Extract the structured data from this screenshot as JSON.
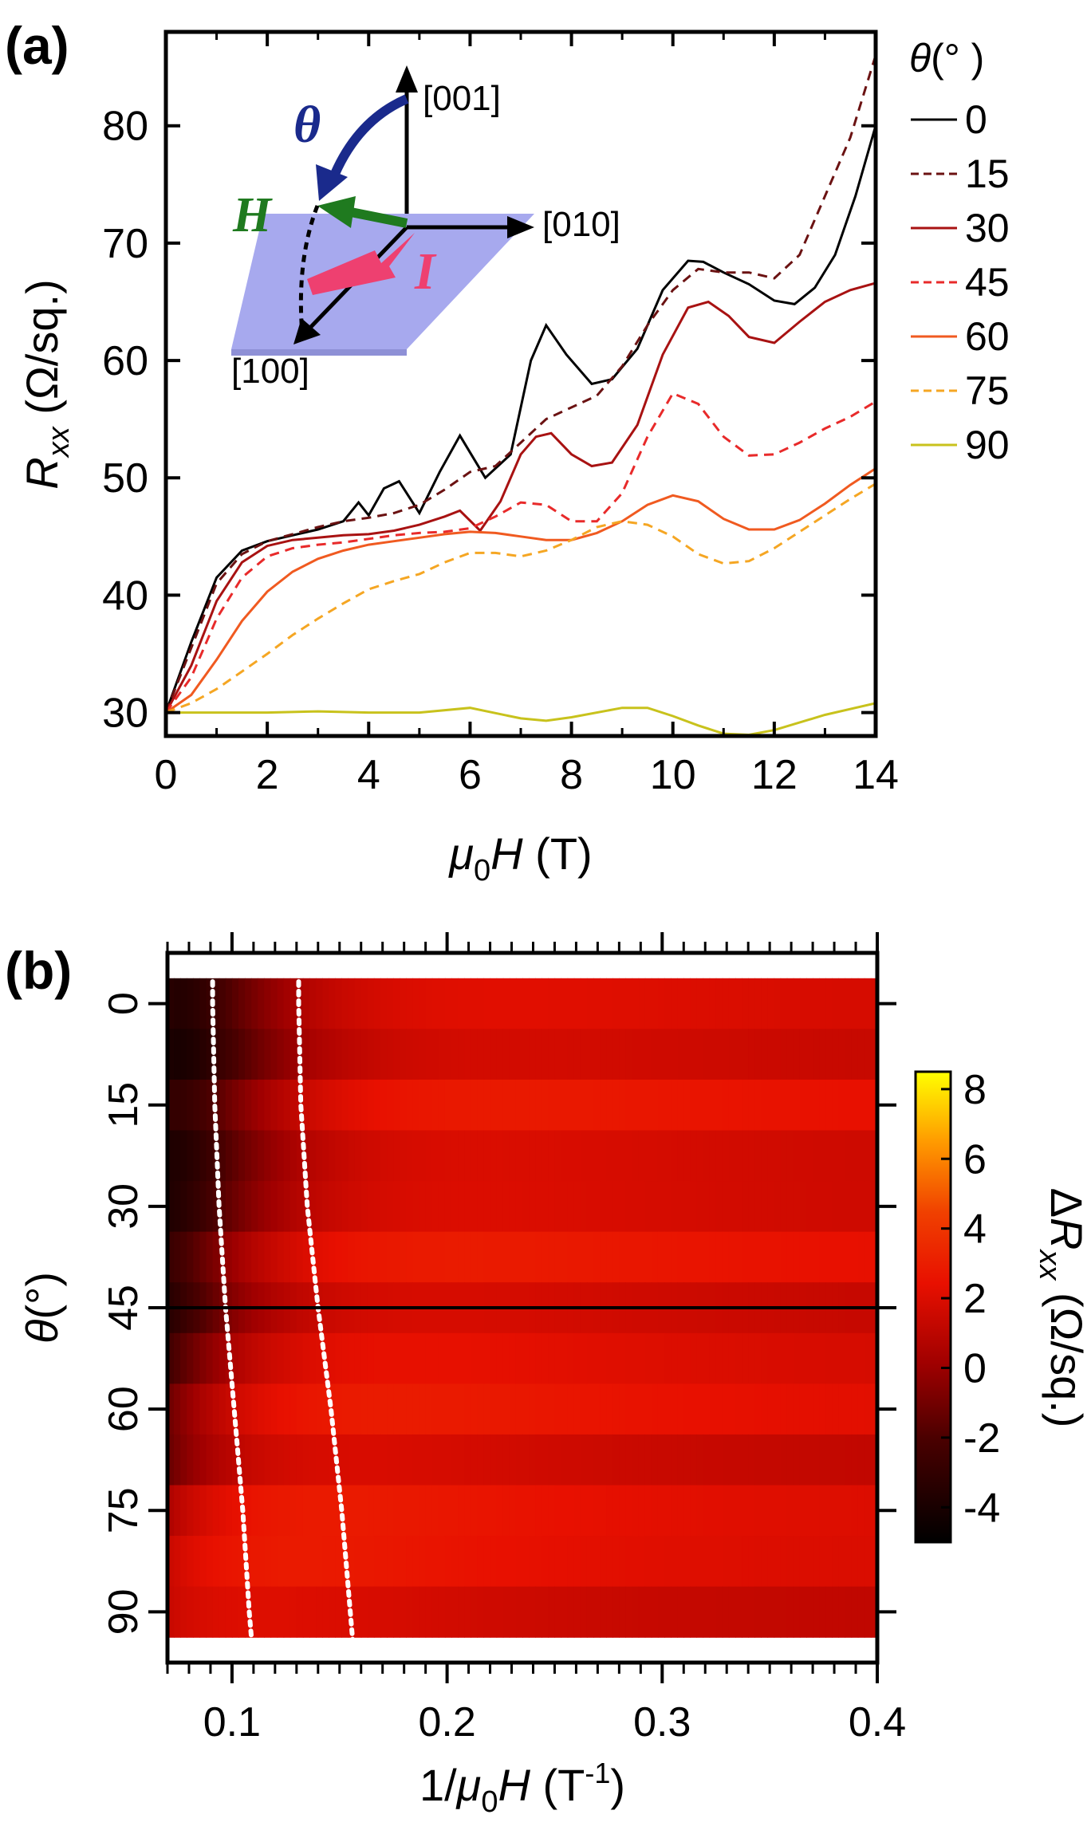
{
  "panels": [
    {
      "label": "(a)"
    },
    {
      "label": "(b)"
    }
  ],
  "chart_data": [
    {
      "type": "line",
      "panel": "(a)",
      "xlabel": "μ0H (T)",
      "xlabel_parts": {
        "mu": "μ",
        "sub": "0",
        "H": "H",
        "unit": " (T)"
      },
      "ylabel": "Rxx (Ω/sq.)",
      "ylabel_parts": {
        "R": "R",
        "sub": "xx",
        "unit": " (Ω/sq.)"
      },
      "xlim": [
        0,
        14
      ],
      "ylim": [
        28,
        88
      ],
      "xticks": [
        0,
        2,
        4,
        6,
        8,
        10,
        12,
        14
      ],
      "yticks": [
        30,
        40,
        50,
        60,
        70,
        80
      ],
      "legend_title": "θ(°)",
      "legend_title_parts": {
        "theta": "θ",
        "unit": "(° )"
      },
      "legend_position": "right",
      "series": [
        {
          "name": "0",
          "color": "#000000",
          "dash": "solid",
          "x": [
            0,
            0.5,
            1,
            1.5,
            2,
            2.5,
            3,
            3.5,
            3.8,
            4,
            4.3,
            4.6,
            5,
            5.4,
            5.8,
            6.3,
            6.8,
            7.2,
            7.5,
            7.9,
            8.4,
            8.8,
            9.3,
            9.8,
            10.3,
            10.6,
            11,
            11.5,
            12,
            12.4,
            12.8,
            13.2,
            13.6,
            14
          ],
          "y": [
            30,
            36,
            41.5,
            43.8,
            44.6,
            45.1,
            45.6,
            46.3,
            47.9,
            46.8,
            49.1,
            49.7,
            47,
            50.5,
            53.6,
            50,
            52,
            60,
            63,
            60.5,
            58,
            58.4,
            61,
            66,
            68.5,
            68.4,
            67.5,
            66.5,
            65.1,
            64.8,
            66.2,
            69,
            74,
            80
          ]
        },
        {
          "name": "15",
          "color": "#6b1212",
          "dash": "dash",
          "x": [
            0,
            0.5,
            1,
            1.5,
            2,
            2.5,
            3,
            3.5,
            4,
            4.5,
            5,
            5.5,
            6,
            6.5,
            7,
            7.5,
            8,
            8.5,
            9,
            9.5,
            10,
            10.5,
            11,
            11.5,
            12,
            12.5,
            13,
            13.5,
            14
          ],
          "y": [
            30,
            35.5,
            41,
            43.5,
            44.6,
            45.2,
            45.8,
            46.3,
            46.6,
            47,
            47.7,
            49,
            50.5,
            51,
            53,
            55,
            56,
            57,
            59.5,
            63,
            66,
            67.8,
            67.5,
            67.5,
            67,
            69,
            74,
            79,
            86
          ]
        },
        {
          "name": "30",
          "color": "#a81212",
          "dash": "solid",
          "x": [
            0,
            0.5,
            1,
            1.5,
            2,
            2.5,
            3,
            3.5,
            4,
            4.5,
            5,
            5.5,
            5.8,
            6.2,
            6.6,
            7,
            7.3,
            7.6,
            8,
            8.4,
            8.8,
            9.3,
            9.8,
            10.3,
            10.7,
            11.1,
            11.5,
            12,
            12.5,
            13,
            13.5,
            14
          ],
          "y": [
            30,
            34,
            39.5,
            42.8,
            44.2,
            44.7,
            44.9,
            45.1,
            45.2,
            45.5,
            46,
            46.7,
            47.2,
            45.5,
            48,
            52,
            53.5,
            53.8,
            52,
            51,
            51.3,
            54.5,
            60.5,
            64.5,
            65,
            63.8,
            62,
            61.5,
            63.3,
            65,
            66,
            66.6
          ]
        },
        {
          "name": "45",
          "color": "#e82a2a",
          "dash": "dash",
          "x": [
            0,
            0.5,
            1,
            1.5,
            2,
            2.5,
            3,
            3.5,
            4,
            4.5,
            5,
            5.5,
            6,
            6.5,
            7,
            7.5,
            8,
            8.5,
            9,
            9.5,
            10,
            10.5,
            11,
            11.5,
            12,
            12.5,
            13,
            13.5,
            14
          ],
          "y": [
            30,
            33,
            38,
            41.5,
            43.3,
            44,
            44.3,
            44.5,
            44.8,
            45.1,
            45.3,
            45.4,
            45.7,
            46.7,
            47.9,
            47.7,
            46.3,
            46.3,
            48.7,
            53.5,
            57.2,
            56.3,
            53.5,
            51.9,
            52,
            53,
            54.2,
            55.2,
            56.5
          ]
        },
        {
          "name": "60",
          "color": "#f05a20",
          "dash": "solid",
          "x": [
            0,
            0.5,
            1,
            1.5,
            2,
            2.5,
            3,
            3.5,
            4,
            4.5,
            5,
            5.5,
            6,
            6.5,
            7,
            7.5,
            8,
            8.5,
            9,
            9.5,
            10,
            10.5,
            11,
            11.5,
            12,
            12.5,
            13,
            13.5,
            14
          ],
          "y": [
            30,
            31.5,
            34.5,
            37.8,
            40.3,
            42,
            43.1,
            43.8,
            44.3,
            44.6,
            44.9,
            45.2,
            45.4,
            45.3,
            45,
            44.7,
            44.7,
            45.3,
            46.3,
            47.7,
            48.5,
            48,
            46.5,
            45.6,
            45.6,
            46.4,
            47.8,
            49.4,
            50.8
          ]
        },
        {
          "name": "75",
          "color": "#f5a623",
          "dash": "dash",
          "x": [
            0,
            0.5,
            1,
            1.5,
            2,
            2.5,
            3,
            3.5,
            4,
            4.5,
            5,
            5.5,
            6,
            6.5,
            7,
            7.5,
            8,
            8.5,
            9,
            9.5,
            10,
            10.5,
            11,
            11.5,
            12,
            12.5,
            13,
            13.5,
            14
          ],
          "y": [
            30,
            30.8,
            32,
            33.5,
            35,
            36.6,
            38,
            39.3,
            40.5,
            41.2,
            41.8,
            42.8,
            43.6,
            43.6,
            43.3,
            43.8,
            44.7,
            45.8,
            46.3,
            46,
            45,
            43.5,
            42.7,
            42.9,
            44,
            45.4,
            46.8,
            48.2,
            49.5
          ]
        },
        {
          "name": "90",
          "color": "#c8c21c",
          "dash": "solid",
          "x": [
            0,
            1,
            2,
            3,
            4,
            5,
            6,
            7,
            7.5,
            8,
            9,
            9.5,
            10,
            10.5,
            11,
            11.5,
            12,
            13,
            14
          ],
          "y": [
            30,
            30,
            30,
            30.1,
            30,
            30,
            30.4,
            29.5,
            29.3,
            29.6,
            30.4,
            30.4,
            29.7,
            28.9,
            28.2,
            28.1,
            28.5,
            29.8,
            30.8
          ]
        }
      ],
      "inset": {
        "labels": {
          "z": "[001]",
          "y": "[010]",
          "x": "[100]"
        },
        "symbols": {
          "theta": "θ",
          "H": "H",
          "I": "I"
        },
        "colors": {
          "theta": "#1a2a8c",
          "H": "#1f7a1f",
          "I": "#ee4070",
          "plane": "#a7a9ee"
        }
      }
    },
    {
      "type": "heatmap",
      "panel": "(b)",
      "xlabel": "1/μ0H (T-1)",
      "xlabel_parts": {
        "pre": "1/",
        "mu": "μ",
        "sub": "0",
        "H": "H",
        "unit": " (T",
        "exp": "-1",
        "close": ")"
      },
      "ylabel": "θ(°)",
      "ylabel_parts": {
        "theta": "θ",
        "unit": "(°)"
      },
      "xlim": [
        0.07,
        0.4
      ],
      "ylim": [
        -7.5,
        97.5
      ],
      "xticks": [
        0.1,
        0.2,
        0.3,
        0.4
      ],
      "yticks": [
        0,
        15,
        30,
        45,
        60,
        75,
        90
      ],
      "angles": [
        0,
        7.5,
        15,
        22.5,
        30,
        37.5,
        45,
        52.5,
        60,
        67.5,
        75,
        82.5,
        90
      ],
      "horizontal_line_at": 45,
      "colorbar": {
        "label": "ΔRxx (Ω/sq.)",
        "label_parts": {
          "delta": "Δ",
          "R": "R",
          "sub": "xx",
          "unit": " (Ω/sq.)"
        },
        "range": [
          -5,
          8.5
        ],
        "ticks": [
          8,
          6,
          4,
          2,
          0,
          -2,
          -4
        ],
        "tick_labels": [
          "8",
          "6",
          "4",
          "2",
          "0",
          "-2",
          "-4"
        ]
      },
      "guide_lines": [
        {
          "name": "guide-1",
          "theta": [
            -7.5,
            0,
            15,
            30,
            45,
            60,
            75,
            90,
            97.5
          ],
          "x": [
            0.091,
            0.091,
            0.092,
            0.094,
            0.097,
            0.101,
            0.105,
            0.108,
            0.11
          ]
        },
        {
          "name": "guide-2",
          "theta": [
            -7.5,
            0,
            15,
            30,
            45,
            60,
            75,
            90,
            97.5
          ],
          "x": [
            0.131,
            0.131,
            0.132,
            0.135,
            0.14,
            0.146,
            0.151,
            0.155,
            0.157
          ]
        }
      ]
    }
  ]
}
